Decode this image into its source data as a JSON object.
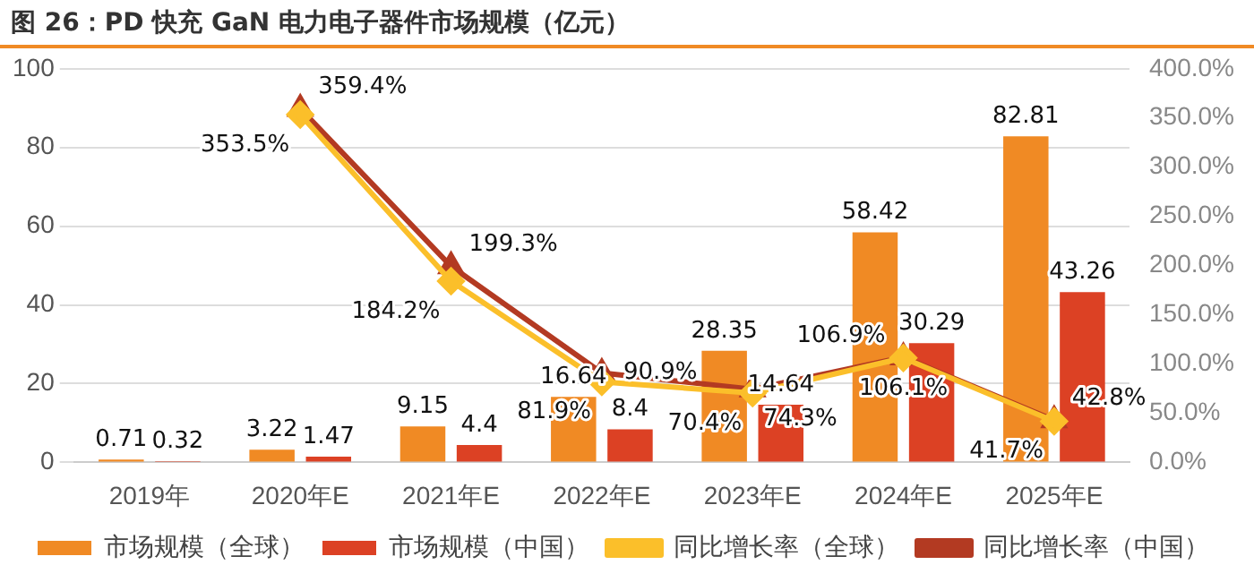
{
  "chart_data": {
    "type": "bar",
    "title": "图 26：PD 快充 GaN 电力电子器件市场规模（亿元）",
    "categories": [
      "2019年",
      "2020年E",
      "2021年E",
      "2022年E",
      "2023年E",
      "2024年E",
      "2025年E"
    ],
    "series": [
      {
        "name": "市场规模（全球）",
        "color": "#f08a24",
        "values": [
          0.71,
          3.22,
          9.15,
          16.64,
          28.35,
          58.42,
          82.81
        ],
        "value_labels": [
          "0.71",
          "3.22",
          "9.15",
          "16.64",
          "28.35",
          "58.42",
          "82.81"
        ]
      },
      {
        "name": "市场规模（中国）",
        "color": "#dc4124",
        "values": [
          0.32,
          1.47,
          4.4,
          8.4,
          14.64,
          30.29,
          43.26
        ],
        "value_labels": [
          "0.32",
          "1.47",
          "4.4",
          "8.4",
          "14.64",
          "30.29",
          "43.26"
        ]
      },
      {
        "name": "同比增长率（全球）",
        "type": "line",
        "axis": "y2",
        "marker": "diamond",
        "color": "#fbbf2a",
        "values": [
          null,
          353.5,
          184.2,
          81.9,
          70.4,
          106.1,
          41.7
        ],
        "value_labels": [
          null,
          "353.5%",
          "184.2%",
          "81.9%",
          "70.4%",
          "106.1%",
          "41.7%"
        ]
      },
      {
        "name": "同比增长率（中国）",
        "type": "line",
        "axis": "y2",
        "marker": "triangle",
        "color": "#b33a22",
        "values": [
          null,
          359.4,
          199.3,
          90.9,
          74.3,
          106.9,
          42.8
        ],
        "value_labels": [
          null,
          "359.4%",
          "199.3%",
          "90.9%",
          "74.3%",
          "106.9%",
          "42.8%"
        ]
      }
    ],
    "ylim": [
      0,
      100
    ],
    "yticks": [
      0,
      20,
      40,
      60,
      80,
      100
    ],
    "y2lim": [
      0,
      400
    ],
    "y2ticks": [
      {
        "value": 0,
        "label": "0.0%"
      },
      {
        "value": 50,
        "label": "50.0%"
      },
      {
        "value": 100,
        "label": "100.0%"
      },
      {
        "value": 150,
        "label": "150.0%"
      },
      {
        "value": 200,
        "label": "200.0%"
      },
      {
        "value": 250,
        "label": "250.0%"
      },
      {
        "value": 300,
        "label": "300.0%"
      },
      {
        "value": 350,
        "label": "350.0%"
      },
      {
        "value": 400,
        "label": "400.0%"
      }
    ],
    "grid": "y",
    "legend": "bottom"
  }
}
